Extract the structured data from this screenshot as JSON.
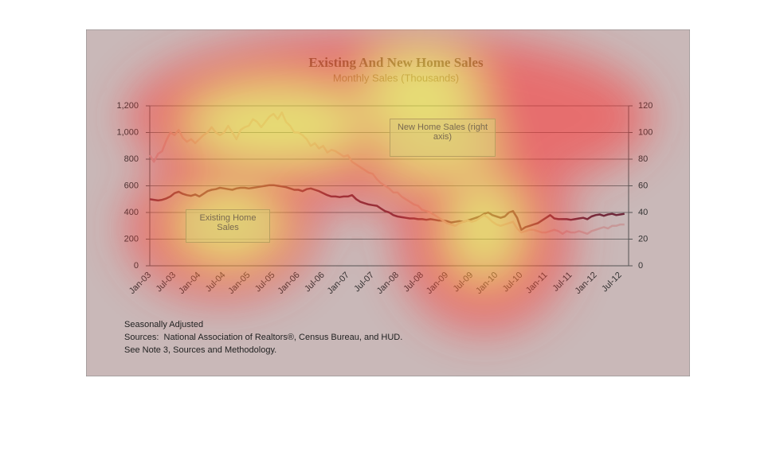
{
  "chart_data": {
    "type": "line",
    "title": "Existing And New Home Sales",
    "subtitle": "Monthly Sales (Thousands)",
    "categories": [
      "Jan-03",
      null,
      null,
      null,
      null,
      null,
      "Jul-03",
      null,
      null,
      null,
      null,
      null,
      "Jan-04",
      null,
      null,
      null,
      null,
      null,
      "Jul-04",
      null,
      null,
      null,
      null,
      null,
      "Jan-05",
      null,
      null,
      null,
      null,
      null,
      "Jul-05",
      null,
      null,
      null,
      null,
      null,
      "Jan-06",
      null,
      null,
      null,
      null,
      null,
      "Jul-06",
      null,
      null,
      null,
      null,
      null,
      "Jan-07",
      null,
      null,
      null,
      null,
      null,
      "Jul-07",
      null,
      null,
      null,
      null,
      null,
      "Jan-08",
      null,
      null,
      null,
      null,
      null,
      "Jul-08",
      null,
      null,
      null,
      null,
      null,
      "Jan-09",
      null,
      null,
      null,
      null,
      null,
      "Jul-09",
      null,
      null,
      null,
      null,
      null,
      "Jan-10",
      null,
      null,
      null,
      null,
      null,
      "Jul-10",
      null,
      null,
      null,
      null,
      null,
      "Jan-11",
      null,
      null,
      null,
      null,
      null,
      "Jul-11",
      null,
      null,
      null,
      null,
      null,
      "Jan-12",
      null,
      null,
      null,
      null,
      null,
      "Jul-12",
      null
    ],
    "series": [
      {
        "name": "Existing Home Sales",
        "color": "#6e2a3c",
        "values": [
          500,
          495,
          490,
          495,
          505,
          520,
          545,
          555,
          540,
          530,
          525,
          535,
          520,
          540,
          560,
          570,
          575,
          585,
          580,
          575,
          570,
          580,
          585,
          585,
          580,
          585,
          590,
          595,
          600,
          605,
          605,
          600,
          595,
          590,
          580,
          570,
          570,
          560,
          575,
          580,
          570,
          560,
          545,
          530,
          520,
          520,
          515,
          520,
          520,
          530,
          500,
          480,
          470,
          460,
          455,
          450,
          430,
          410,
          400,
          380,
          370,
          365,
          360,
          355,
          355,
          350,
          350,
          345,
          350,
          345,
          340,
          340,
          335,
          325,
          330,
          335,
          330,
          340,
          350,
          360,
          370,
          390,
          400,
          380,
          370,
          360,
          370,
          400,
          410,
          360,
          270,
          290,
          300,
          310,
          320,
          340,
          360,
          380,
          355,
          350,
          350,
          350,
          345,
          350,
          355,
          360,
          350,
          370,
          380,
          385,
          375,
          385,
          390,
          380,
          385,
          390
        ]
      },
      {
        "name": "New Home Sales (right axis)",
        "color": "#c79a9a",
        "axis": "y2",
        "values": [
          83,
          78,
          84,
          86,
          94,
          100,
          98,
          102,
          96,
          93,
          95,
          92,
          95,
          98,
          100,
          104,
          100,
          98,
          100,
          105,
          100,
          95,
          102,
          104,
          105,
          110,
          108,
          104,
          108,
          112,
          114,
          110,
          115,
          108,
          105,
          100,
          100,
          98,
          95,
          90,
          92,
          88,
          90,
          85,
          87,
          86,
          84,
          82,
          83,
          78,
          76,
          74,
          72,
          70,
          69,
          65,
          62,
          60,
          58,
          55,
          55,
          52,
          50,
          48,
          46,
          45,
          42,
          41,
          40,
          38,
          36,
          34,
          32,
          31,
          30,
          32,
          33,
          34,
          33,
          34,
          36,
          38,
          36,
          33,
          31,
          30,
          31,
          32,
          33,
          28,
          25,
          26,
          27,
          27,
          26,
          25,
          25,
          26,
          27,
          26,
          24,
          26,
          25,
          25,
          26,
          25,
          24,
          26,
          27,
          28,
          29,
          28,
          30,
          30,
          31,
          31
        ]
      }
    ],
    "ylim": [
      0,
      1200
    ],
    "yticks": [
      0,
      200,
      400,
      600,
      800,
      {
        "value": 1000,
        "label": "1,000"
      },
      {
        "value": 1200,
        "label": "1,200"
      }
    ],
    "y2lim": [
      0,
      120
    ],
    "y2ticks": [
      0,
      20,
      40,
      60,
      80,
      100,
      120
    ],
    "grid": true,
    "notes": [
      "Seasonally Adjusted",
      "Sources:  National Association of Realtors®, Census Bureau, and HUD.",
      "See Note 3, Sources and Methodology."
    ]
  }
}
